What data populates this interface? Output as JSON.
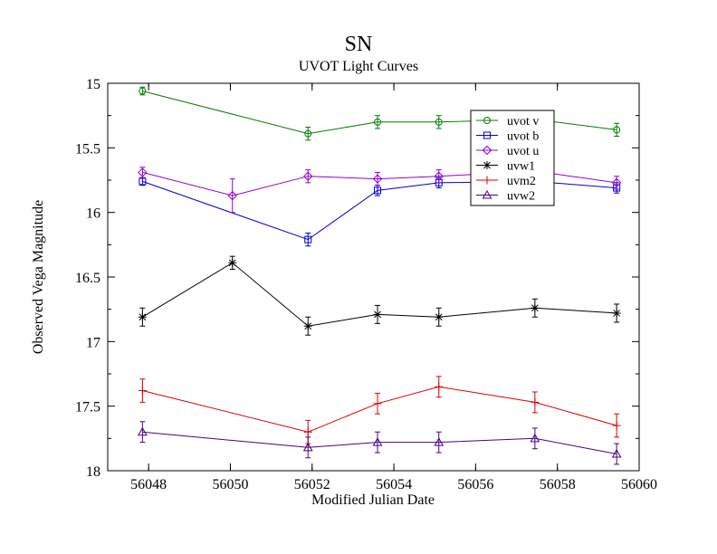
{
  "chart_data": {
    "type": "line",
    "title": "SN",
    "subtitle": "UVOT Light Curves",
    "xlabel": "Modified Julian Date",
    "ylabel": "Observed Vega Magnitude",
    "xlim": [
      56047,
      56060
    ],
    "ylim": [
      15,
      18
    ],
    "y_inverted": true,
    "grid": false,
    "legend_position": "top-right",
    "x_ticks": [
      56048,
      56050,
      56052,
      56054,
      56056,
      56058,
      56060
    ],
    "x_tick_labels": [
      "56048",
      "56050",
      "56052",
      "56054",
      "56056",
      "56058",
      "56060"
    ],
    "y_ticks": [
      15,
      15.5,
      16,
      16.5,
      17,
      17.5,
      18
    ],
    "y_tick_labels": [
      "15",
      "15.5",
      "16",
      "16.5",
      "17",
      "17.5",
      "18"
    ],
    "series": [
      {
        "name": "uvot v",
        "color": "#008000",
        "marker": "circle",
        "x": [
          56047.85,
          56051.9,
          56053.6,
          56055.1,
          56057.45,
          56059.45
        ],
        "y": [
          15.06,
          15.39,
          15.3,
          15.3,
          15.28,
          15.36
        ],
        "err": [
          0.03,
          0.05,
          0.05,
          0.05,
          0.05,
          0.05
        ]
      },
      {
        "name": "uvot b",
        "color": "#0000cc",
        "marker": "square",
        "x": [
          56047.85,
          56051.9,
          56053.6,
          56055.1,
          56057.45,
          56059.45
        ],
        "y": [
          15.76,
          16.21,
          15.83,
          15.77,
          15.76,
          15.81
        ],
        "err": [
          0.03,
          0.05,
          0.04,
          0.04,
          0.04,
          0.04
        ]
      },
      {
        "name": "uvot u",
        "color": "#9400d3",
        "marker": "diamond",
        "x": [
          56047.85,
          56050.05,
          56051.9,
          56053.6,
          56055.1,
          56057.45,
          56059.45
        ],
        "y": [
          15.69,
          15.87,
          15.72,
          15.74,
          15.72,
          15.68,
          15.77
        ],
        "err": [
          0.04,
          0.13,
          0.05,
          0.05,
          0.05,
          0.04,
          0.05
        ]
      },
      {
        "name": "uvw1",
        "color": "#000000",
        "marker": "star",
        "x": [
          56047.85,
          56050.05,
          56051.9,
          56053.6,
          56055.1,
          56057.45,
          56059.45
        ],
        "y": [
          16.81,
          16.39,
          16.88,
          16.79,
          16.81,
          16.74,
          16.78
        ],
        "err": [
          0.07,
          0.05,
          0.07,
          0.07,
          0.07,
          0.07,
          0.07
        ]
      },
      {
        "name": "uvm2",
        "color": "#dd0000",
        "marker": "plus",
        "x": [
          56047.85,
          56051.9,
          56053.6,
          56055.1,
          56057.45,
          56059.45
        ],
        "y": [
          17.38,
          17.7,
          17.48,
          17.35,
          17.47,
          17.65
        ],
        "err": [
          0.09,
          0.09,
          0.08,
          0.08,
          0.08,
          0.09
        ]
      },
      {
        "name": "uvw2",
        "color": "#4b0082",
        "marker": "triangle",
        "x": [
          56047.85,
          56051.9,
          56053.6,
          56055.1,
          56057.45,
          56059.45
        ],
        "y": [
          17.7,
          17.82,
          17.78,
          17.78,
          17.75,
          17.87
        ],
        "err": [
          0.08,
          0.08,
          0.08,
          0.08,
          0.08,
          0.08
        ]
      }
    ]
  }
}
